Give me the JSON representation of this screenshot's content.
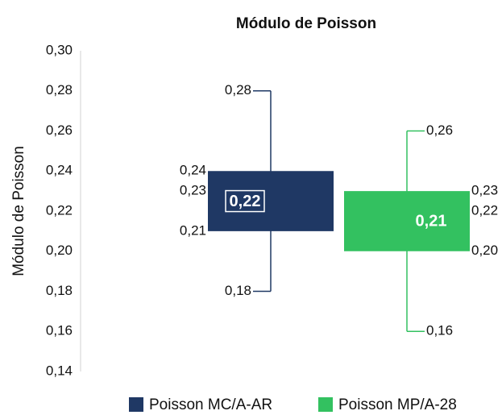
{
  "chart_data": {
    "type": "box",
    "title": "Módulo de Poisson",
    "y_label": "Módulo  de Poisson",
    "ylim": [
      0.14,
      0.3
    ],
    "yticks": [
      {
        "value": 0.14,
        "label": "0,14"
      },
      {
        "value": 0.16,
        "label": "0,16"
      },
      {
        "value": 0.18,
        "label": "0,18"
      },
      {
        "value": 0.2,
        "label": "0,20"
      },
      {
        "value": 0.22,
        "label": "0,22"
      },
      {
        "value": 0.24,
        "label": "0,24"
      },
      {
        "value": 0.26,
        "label": "0,26"
      },
      {
        "value": 0.28,
        "label": "0,28"
      },
      {
        "value": 0.3,
        "label": "0,30"
      }
    ],
    "series": [
      {
        "name": "Poisson MC/A-AR",
        "color": "#1f3864",
        "values": {
          "max": 0.28,
          "q3": 0.24,
          "median": 0.23,
          "q1": 0.21,
          "min": 0.18,
          "mean": 0.22
        },
        "value_labels": {
          "max": "0,28",
          "q3": "0,24",
          "median": "0,23",
          "q1": "0,21",
          "min": "0,18",
          "mean": "0,22"
        }
      },
      {
        "name": "Poisson MP/A-28",
        "color": "#33c160",
        "values": {
          "max": 0.26,
          "q3": 0.23,
          "median": 0.22,
          "q1": 0.2,
          "min": 0.16,
          "mean": 0.21
        },
        "value_labels": {
          "max": "0,26",
          "q3": "0,23",
          "median": "0,22",
          "q1": "0,20",
          "min": "0,16",
          "mean": "0,21"
        }
      }
    ]
  }
}
